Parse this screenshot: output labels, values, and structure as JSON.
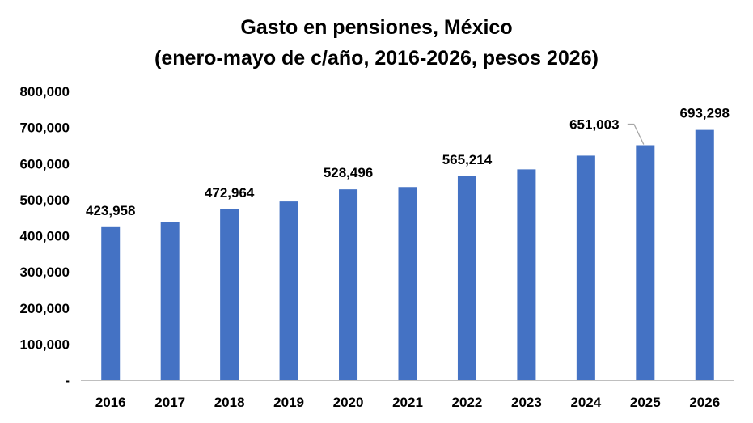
{
  "chart_data": {
    "type": "bar",
    "title_lines": [
      "Gasto en pensiones, México",
      "(enero-mayo de c/año, 2016-2026, pesos 2026)"
    ],
    "categories": [
      "2016",
      "2017",
      "2018",
      "2019",
      "2020",
      "2021",
      "2022",
      "2023",
      "2024",
      "2025",
      "2026"
    ],
    "values": [
      423958,
      437000,
      472964,
      495000,
      528496,
      535000,
      565214,
      584000,
      622000,
      651003,
      693298
    ],
    "data_labels": [
      {
        "index": 0,
        "text": "423,958"
      },
      {
        "index": 2,
        "text": "472,964"
      },
      {
        "index": 4,
        "text": "528,496"
      },
      {
        "index": 6,
        "text": "565,214"
      },
      {
        "index": 9,
        "text": "651,003",
        "leader_line": true
      },
      {
        "index": 10,
        "text": "693,298"
      }
    ],
    "y_ticks": [
      {
        "value": 0,
        "label": "-"
      },
      {
        "value": 100000,
        "label": "100,000"
      },
      {
        "value": 200000,
        "label": "200,000"
      },
      {
        "value": 300000,
        "label": "300,000"
      },
      {
        "value": 400000,
        "label": "400,000"
      },
      {
        "value": 500000,
        "label": "500,000"
      },
      {
        "value": 600000,
        "label": "600,000"
      },
      {
        "value": 700000,
        "label": "700,000"
      },
      {
        "value": 800000,
        "label": "800,000"
      }
    ],
    "ylim": [
      0,
      800000
    ],
    "grid": false,
    "legend": "none",
    "bar_color": "#4472C4",
    "axis_color": "#BFBFBF"
  }
}
